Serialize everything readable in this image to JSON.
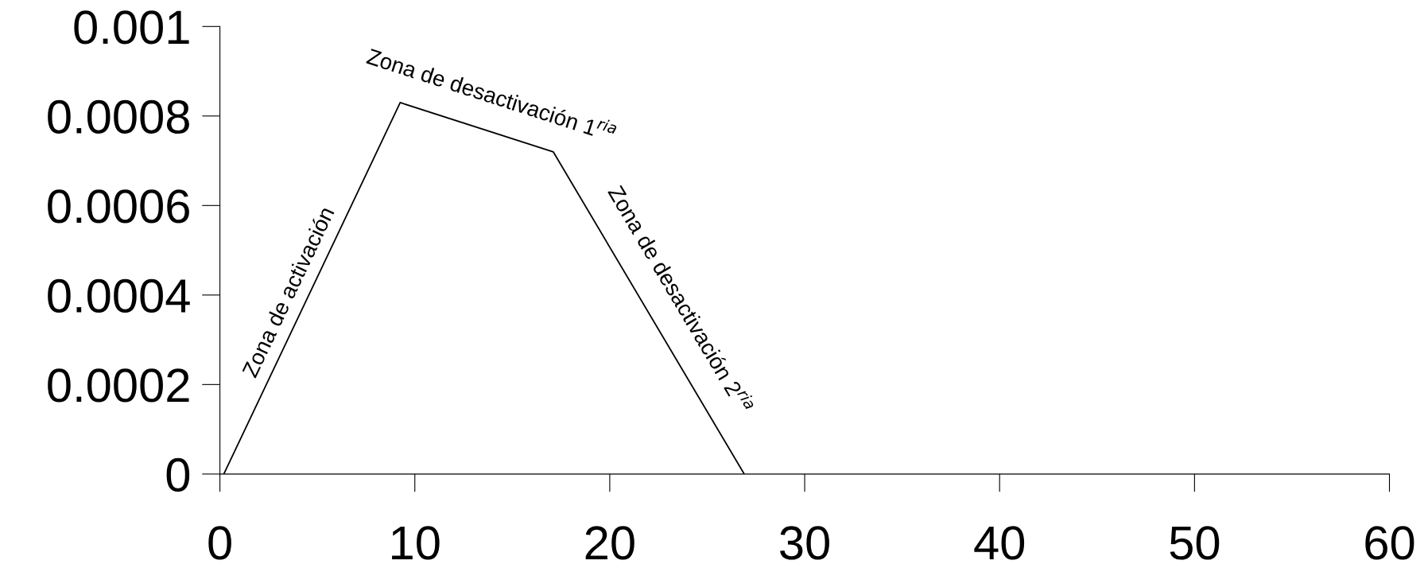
{
  "chart_data": {
    "type": "line",
    "x": [
      0.2,
      9.25,
      17.1,
      26.9
    ],
    "values": [
      0,
      0.00083,
      0.00072,
      0
    ],
    "color": "#000000",
    "xlim": [
      0,
      60
    ],
    "xticks": [
      0,
      10,
      20,
      30,
      40,
      50,
      60
    ],
    "ylim": [
      0,
      0.001
    ],
    "yticks": [
      0,
      0.0002,
      0.0004,
      0.0006,
      0.0008,
      0.001
    ],
    "grid": false,
    "marker": "none",
    "line_style": "solid",
    "annotations": [
      "Zona de activación",
      "Zona de desactivación 1$^{ria}$",
      "Zona de desactivación 2$^{ria}$"
    ]
  }
}
